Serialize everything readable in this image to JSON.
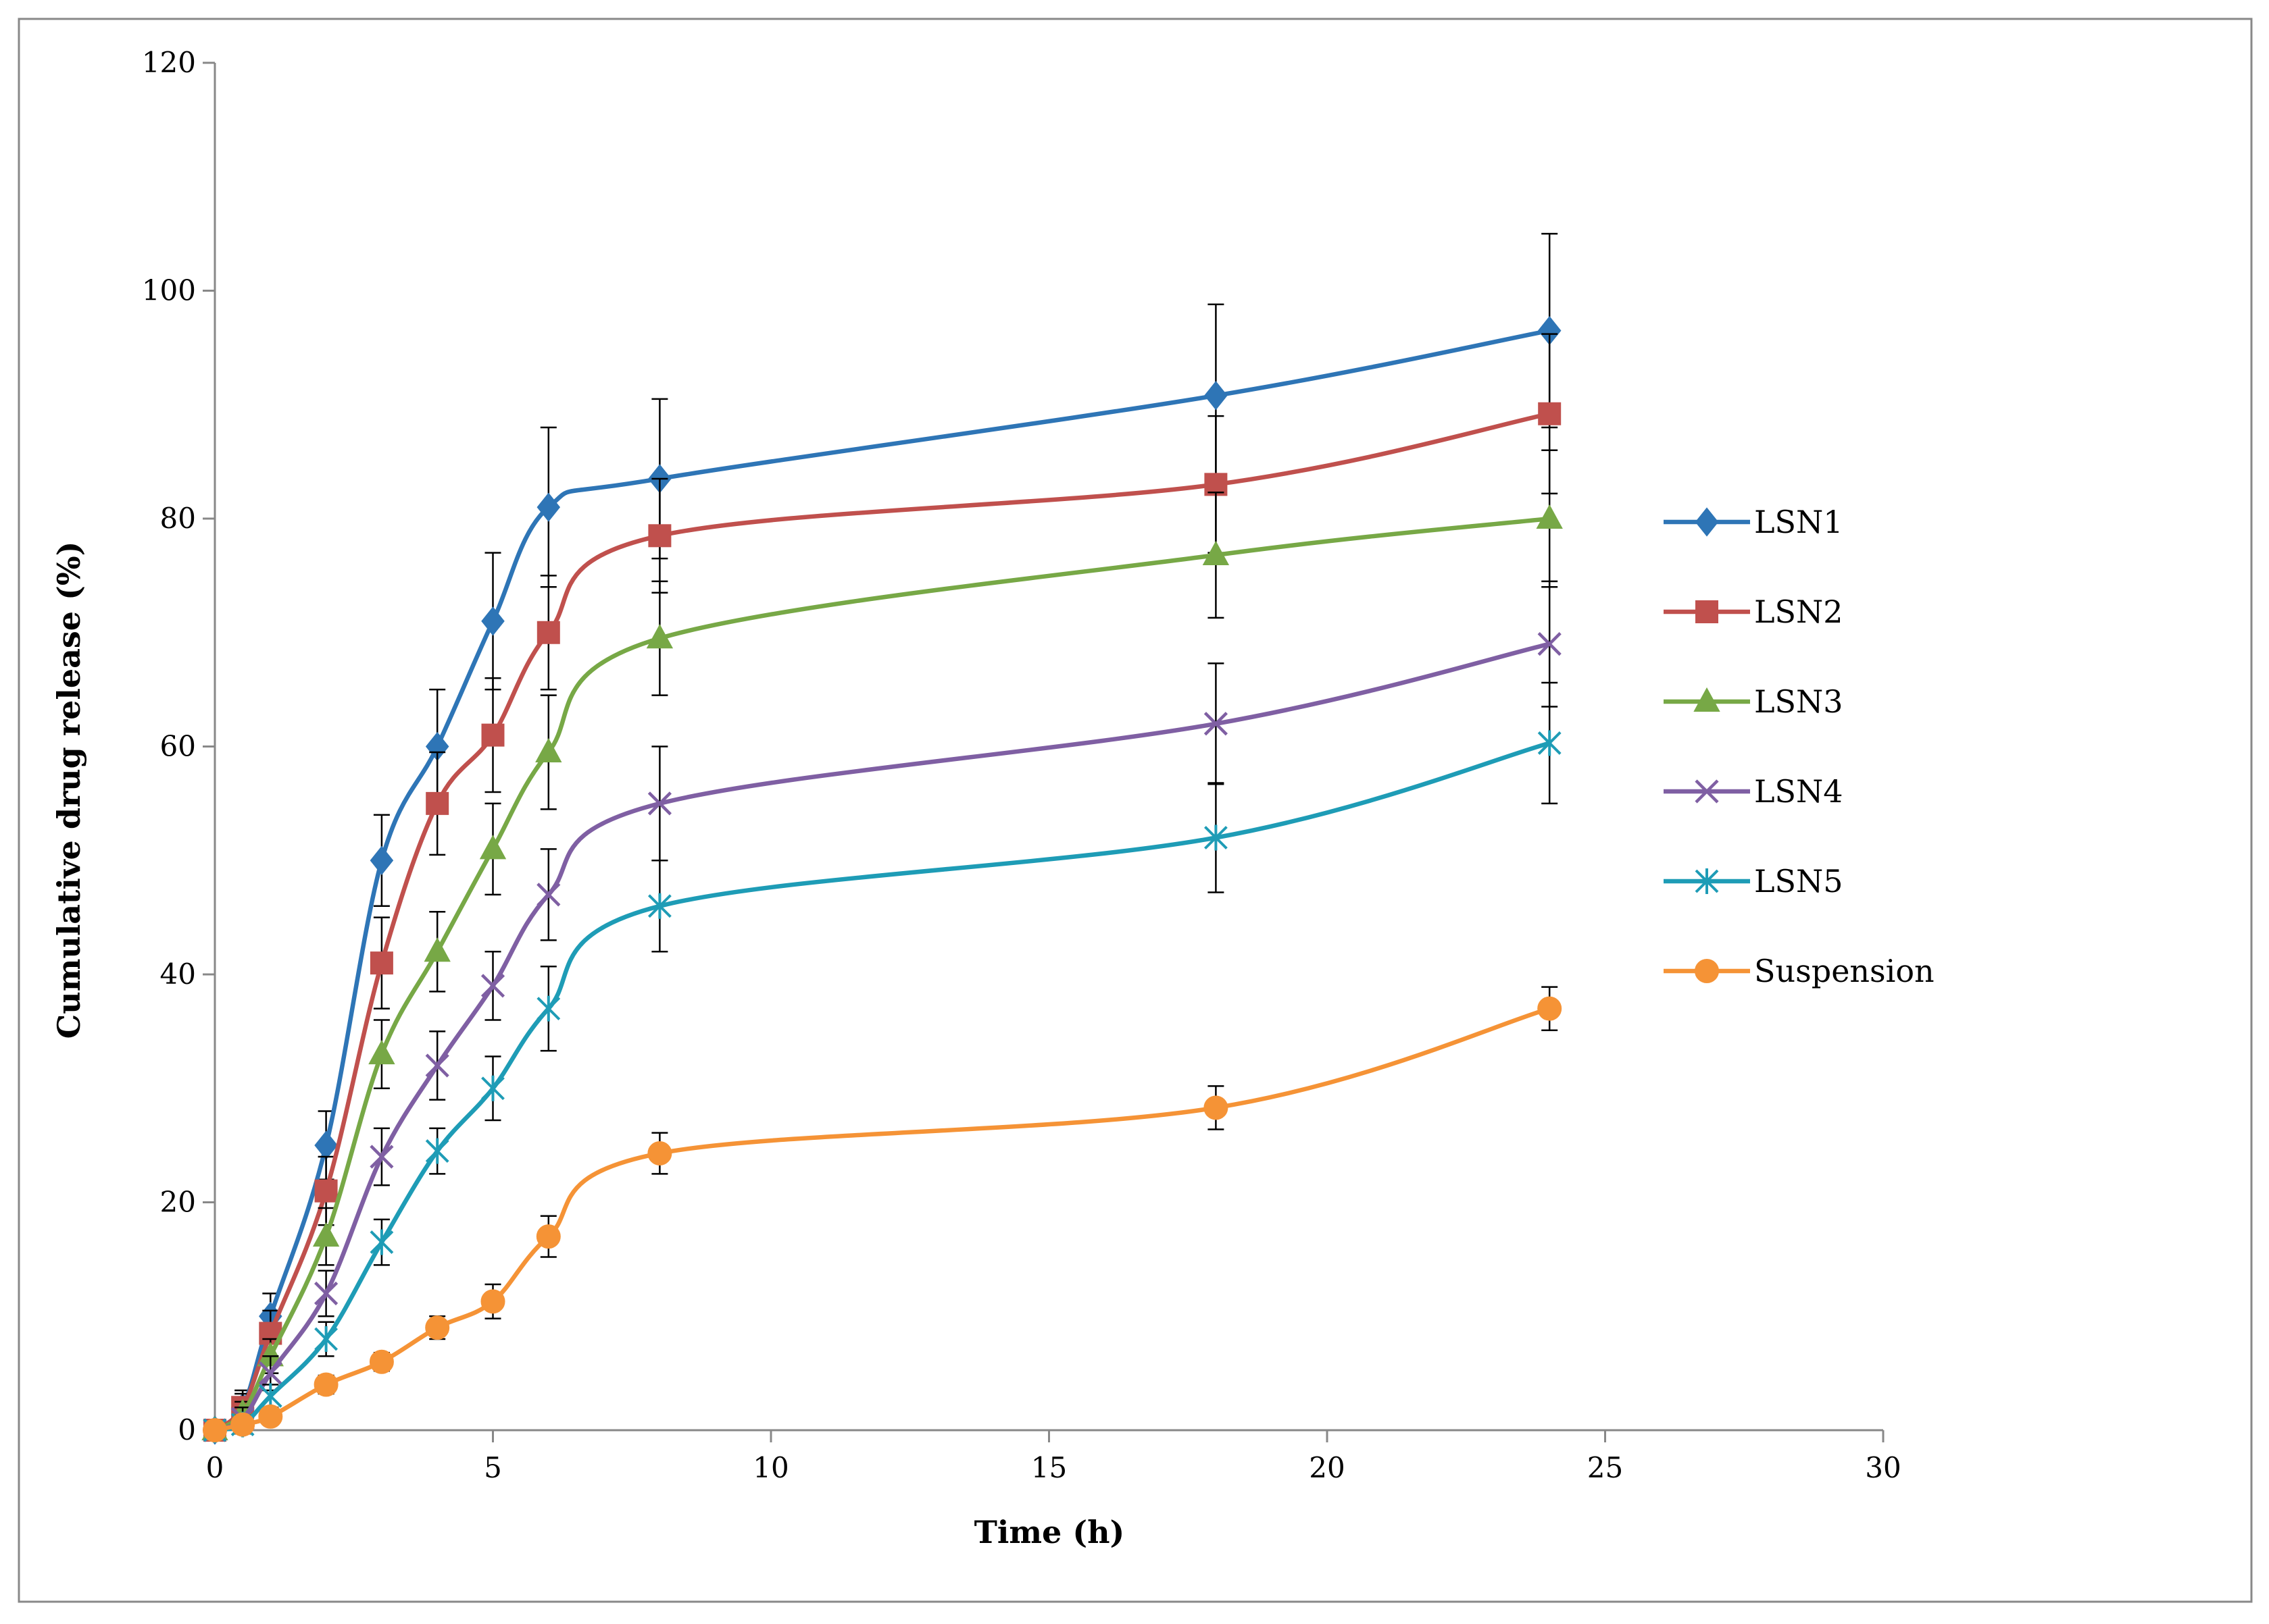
{
  "chart_data": {
    "type": "line",
    "title": "",
    "xlabel": "Time (h)",
    "ylabel": "Cumulative drug release (%)",
    "xlim": [
      0,
      30
    ],
    "ylim": [
      0,
      120
    ],
    "xticks": [
      0,
      5,
      10,
      15,
      20,
      25,
      30
    ],
    "yticks": [
      0,
      20,
      40,
      60,
      80,
      100,
      120
    ],
    "grid": false,
    "legend_position": "right",
    "series": [
      {
        "name": "LSN1",
        "color": "#2E75B6",
        "marker": "diamond",
        "x": [
          0,
          0.5,
          1,
          2,
          3,
          4,
          5,
          6,
          8,
          18,
          24
        ],
        "y": [
          0,
          2,
          10,
          25,
          50,
          60,
          71,
          81,
          83.5,
          90.8,
          96.5
        ],
        "err": [
          0,
          1.5,
          2,
          3,
          4,
          5,
          6,
          7,
          7,
          8,
          8.5
        ]
      },
      {
        "name": "LSN2",
        "color": "#C0504D",
        "marker": "square",
        "x": [
          0,
          0.5,
          1,
          2,
          3,
          4,
          5,
          6,
          8,
          18,
          24
        ],
        "y": [
          0,
          2,
          8.5,
          21,
          41,
          55,
          61,
          70,
          78.5,
          83,
          89.2
        ],
        "err": [
          0,
          1.2,
          2,
          3,
          4,
          4.5,
          5,
          5,
          5,
          6,
          7
        ]
      },
      {
        "name": "LSN3",
        "color": "#77A846",
        "marker": "triangle",
        "x": [
          0,
          0.5,
          1,
          2,
          3,
          4,
          5,
          6,
          8,
          18,
          24
        ],
        "y": [
          0,
          1.5,
          6.5,
          17,
          33,
          42,
          51,
          59.5,
          69.5,
          76.8,
          80
        ],
        "err": [
          0,
          1,
          1.5,
          2.5,
          3,
          3.5,
          4,
          5,
          5,
          5.5,
          6
        ]
      },
      {
        "name": "LSN4",
        "color": "#7F5FA3",
        "marker": "x",
        "x": [
          0,
          0.5,
          1,
          2,
          3,
          4,
          5,
          6,
          8,
          18,
          24
        ],
        "y": [
          0,
          1,
          5,
          12,
          24,
          32,
          39,
          47,
          55,
          62,
          69
        ],
        "err": [
          0,
          1,
          1.5,
          2,
          2.5,
          3,
          3,
          4,
          5,
          5.3,
          5.5
        ]
      },
      {
        "name": "LSN5",
        "color": "#1E9CB6",
        "marker": "asterisk",
        "x": [
          0,
          0.5,
          1,
          2,
          3,
          4,
          5,
          6,
          8,
          18,
          24
        ],
        "y": [
          0,
          0.5,
          3,
          8,
          16.5,
          24.5,
          30,
          37,
          46,
          52,
          60.3
        ],
        "err": [
          0,
          0.8,
          1,
          1.5,
          2,
          2,
          2.8,
          3.7,
          4,
          4.8,
          5.3
        ]
      },
      {
        "name": "Suspension",
        "color": "#F59336",
        "marker": "circle",
        "x": [
          0,
          0.5,
          1,
          2,
          3,
          4,
          5,
          6,
          8,
          18,
          24
        ],
        "y": [
          0,
          0.5,
          1.2,
          4,
          6,
          9,
          11.3,
          17,
          24.3,
          28.3,
          37
        ],
        "err": [
          0,
          0.3,
          0.5,
          0.8,
          0.8,
          1,
          1.5,
          1.8,
          1.8,
          1.9,
          1.9
        ]
      }
    ]
  }
}
